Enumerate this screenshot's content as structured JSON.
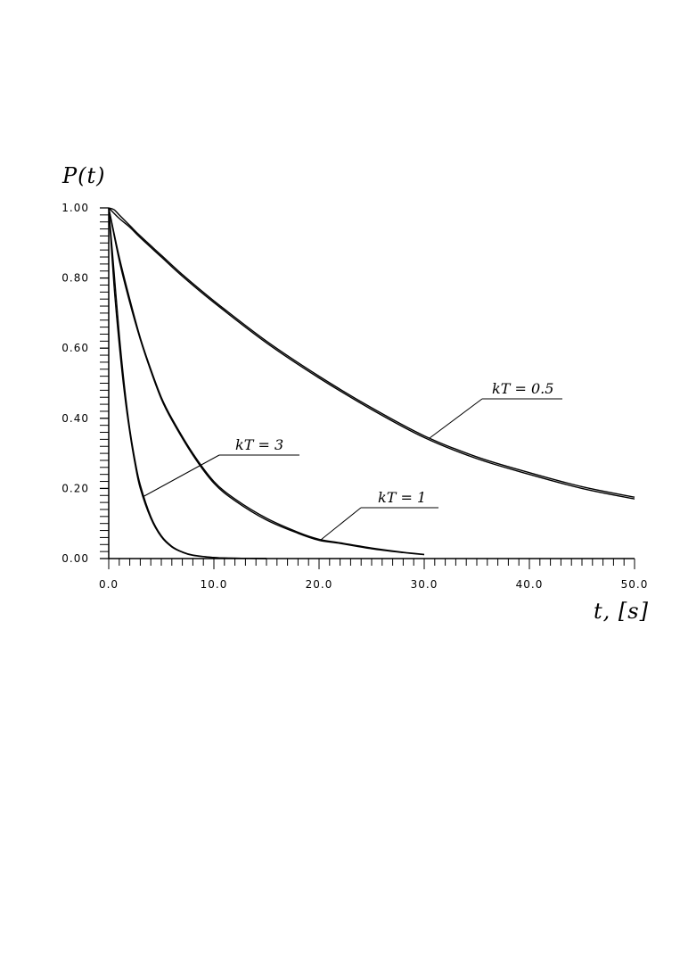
{
  "chart_data": {
    "type": "line",
    "ylabel": "P(t)",
    "xlabel": "t, [s]",
    "xlim": [
      0,
      50
    ],
    "ylim": [
      0,
      1
    ],
    "x_ticks": [
      "0.0",
      "10.0",
      "20.0",
      "30.0",
      "40.0",
      "50.0"
    ],
    "y_ticks": [
      "0.00",
      "0.20",
      "0.40",
      "0.60",
      "0.80",
      "1.00"
    ],
    "grid": false,
    "legend": "none",
    "series": [
      {
        "name": "kT = 3",
        "x": [
          0,
          0.5,
          1,
          1.5,
          2,
          2.5,
          3,
          4,
          5,
          6,
          7,
          8,
          10,
          12,
          15
        ],
        "values": [
          1.0,
          0.82,
          0.64,
          0.49,
          0.37,
          0.28,
          0.21,
          0.12,
          0.065,
          0.035,
          0.019,
          0.01,
          0.003,
          0.001,
          0.0
        ]
      },
      {
        "name": "kT = 3",
        "x": [
          0,
          0.5,
          1,
          1.5,
          2,
          2.5,
          3,
          4,
          5,
          6,
          7,
          8,
          10,
          12,
          15
        ],
        "values": [
          1.0,
          0.78,
          0.61,
          0.47,
          0.36,
          0.27,
          0.2,
          0.115,
          0.062,
          0.033,
          0.018,
          0.009,
          0.003,
          0.001,
          0.0
        ]
      },
      {
        "name": "kT = 1",
        "x": [
          0,
          1,
          2,
          3,
          4,
          5,
          6,
          8,
          10,
          12,
          15,
          18,
          20,
          22,
          25,
          28,
          30
        ],
        "values": [
          1.0,
          0.86,
          0.74,
          0.63,
          0.54,
          0.46,
          0.4,
          0.3,
          0.22,
          0.17,
          0.115,
          0.075,
          0.055,
          0.045,
          0.03,
          0.018,
          0.012
        ]
      },
      {
        "name": "kT = 1",
        "x": [
          0,
          1,
          2,
          3,
          4,
          5,
          6,
          8,
          10,
          12,
          15,
          18,
          20,
          22,
          25,
          28,
          30
        ],
        "values": [
          1.0,
          0.85,
          0.73,
          0.625,
          0.535,
          0.455,
          0.395,
          0.295,
          0.215,
          0.165,
          0.11,
          0.072,
          0.052,
          0.043,
          0.028,
          0.017,
          0.011
        ]
      },
      {
        "name": "kT = 0.5",
        "x": [
          0,
          0.5,
          1,
          2,
          3,
          5,
          7,
          10,
          15,
          20,
          25,
          30,
          35,
          40,
          45,
          50
        ],
        "values": [
          1.0,
          0.995,
          0.98,
          0.95,
          0.92,
          0.865,
          0.81,
          0.735,
          0.62,
          0.52,
          0.43,
          0.35,
          0.29,
          0.245,
          0.205,
          0.175
        ]
      },
      {
        "name": "kT = 0.5",
        "x": [
          0,
          1,
          2,
          3,
          5,
          7,
          10,
          15,
          20,
          25,
          30,
          35,
          40,
          45,
          50
        ],
        "values": [
          1.0,
          0.97,
          0.945,
          0.915,
          0.86,
          0.805,
          0.73,
          0.615,
          0.515,
          0.425,
          0.345,
          0.285,
          0.24,
          0.2,
          0.17
        ]
      }
    ],
    "annotations": [
      "kT = 3",
      "kT = 1",
      "kT = 0.5"
    ]
  }
}
